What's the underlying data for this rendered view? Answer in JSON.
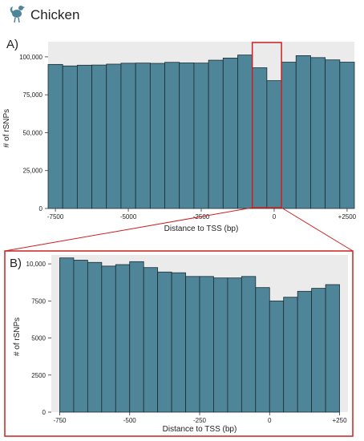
{
  "header": {
    "title": "Chicken",
    "icon": "chicken-icon"
  },
  "colors": {
    "bar": "#4f8598",
    "bar_edge": "#1a2b33",
    "panel_bg": "#ebebeb",
    "highlight": "#cc2020"
  },
  "chart_data": [
    {
      "panel_label": "A)",
      "type": "bar",
      "title": "",
      "xlabel": "Distance to TSS (bp)",
      "ylabel": "# of rSNPs",
      "xlim": [
        -7750,
        2750
      ],
      "ylim": [
        0,
        110000
      ],
      "bin_width": 500,
      "x": [
        -7500,
        -7000,
        -6500,
        -6000,
        -5500,
        -5000,
        -4500,
        -4000,
        -3500,
        -3000,
        -2500,
        -2000,
        -1500,
        -1000,
        -500,
        0,
        500,
        1000,
        1500,
        2000,
        2500
      ],
      "values": [
        95000,
        94000,
        94500,
        94600,
        95200,
        95800,
        95900,
        95700,
        96400,
        96000,
        95900,
        97800,
        99200,
        101200,
        92800,
        84300,
        96500,
        100800,
        99500,
        98000,
        96500
      ],
      "x_ticks": [
        -7500,
        -5000,
        -2500,
        0,
        2500
      ],
      "x_tick_labels": [
        "-7500",
        "-5000",
        "-2500",
        "0",
        "+2500"
      ],
      "y_ticks": [
        0,
        25000,
        50000,
        75000,
        100000
      ],
      "y_tick_labels": [
        "0",
        "25,000",
        "50,000",
        "75,000",
        "100,000"
      ],
      "grid": false,
      "highlight_range": [
        -750,
        250
      ]
    },
    {
      "panel_label": "B)",
      "type": "bar",
      "title": "",
      "xlabel": "Distance to TSS (bp)",
      "ylabel": "# of rSNPs",
      "xlim": [
        -780,
        280
      ],
      "ylim": [
        0,
        10600
      ],
      "bin_width": 50,
      "x": [
        -725,
        -675,
        -625,
        -575,
        -525,
        -475,
        -425,
        -375,
        -325,
        -275,
        -225,
        -175,
        -125,
        -75,
        -25,
        25,
        75,
        125,
        175,
        225
      ],
      "values": [
        10400,
        10250,
        10100,
        9850,
        9950,
        10150,
        9750,
        9450,
        9400,
        9150,
        9150,
        9050,
        9050,
        9150,
        8400,
        7500,
        7750,
        8150,
        8350,
        8600
      ],
      "x_ticks": [
        -750,
        -500,
        -250,
        0,
        250
      ],
      "x_tick_labels": [
        "-750",
        "-500",
        "-250",
        "0",
        "+250"
      ],
      "y_ticks": [
        0,
        2500,
        5000,
        7500,
        10000
      ],
      "y_tick_labels": [
        "0",
        "2500",
        "5000",
        "7500",
        "10,000"
      ],
      "grid": false
    }
  ]
}
